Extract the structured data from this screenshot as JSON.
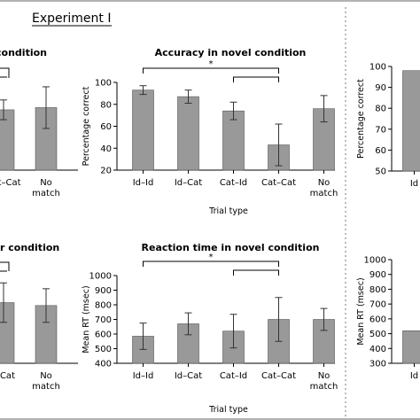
{
  "figure": {
    "heading": "Experiment I"
  },
  "chart_data": [
    {
      "type": "bar",
      "title": "condition",
      "categories": [
        "Cat–Cat",
        "No\nmatch"
      ],
      "values": [
        75,
        77
      ],
      "errors": [
        9,
        19
      ],
      "ylim": [
        20,
        100
      ],
      "yticks": [],
      "ylabel": "",
      "xlabel": "",
      "significance": []
    },
    {
      "type": "bar",
      "title": "Accuracy in novel condition",
      "categories": [
        "Id–Id",
        "Id–Cat",
        "Cat–Id",
        "Cat–Cat",
        "No\nmatch"
      ],
      "values": [
        93,
        87,
        74,
        43,
        76
      ],
      "errors": [
        4,
        6,
        8,
        19,
        12
      ],
      "ylim": [
        20,
        100
      ],
      "yticks": [
        20,
        40,
        60,
        80,
        100
      ],
      "ylabel": "Percentage correct",
      "xlabel": "Trial type",
      "significance": [
        {
          "from": 0,
          "to": 3,
          "label": "*"
        },
        {
          "from": 2,
          "to": 3,
          "label": ""
        }
      ]
    },
    {
      "type": "bar",
      "title": "",
      "categories": [
        "Id"
      ],
      "values": [
        98
      ],
      "errors": [
        0
      ],
      "ylim": [
        50,
        100
      ],
      "yticks": [
        50,
        60,
        70,
        80,
        90,
        100
      ],
      "ylabel": "Percentage correct",
      "xlabel": "",
      "significance": []
    },
    {
      "type": "bar",
      "title": "r condition",
      "categories": [
        "t–Cat",
        "No\nmatch"
      ],
      "values": [
        815,
        795
      ],
      "errors": [
        135,
        115
      ],
      "ylim": [
        400,
        1000
      ],
      "yticks": [],
      "ylabel": "",
      "xlabel": "",
      "significance": []
    },
    {
      "type": "bar",
      "title": "Reaction time in novel condition",
      "categories": [
        "Id–Id",
        "Id–Cat",
        "Cat–Id",
        "Cat–Cat",
        "No\nmatch"
      ],
      "values": [
        585,
        670,
        620,
        700,
        700
      ],
      "errors": [
        90,
        75,
        115,
        150,
        75
      ],
      "ylim": [
        400,
        1000
      ],
      "yticks": [
        400,
        500,
        600,
        700,
        800,
        900,
        1000
      ],
      "ylabel": "Mean RT (msec)",
      "xlabel": "Trial type",
      "significance": [
        {
          "from": 0,
          "to": 3,
          "label": "*"
        },
        {
          "from": 2,
          "to": 3,
          "label": ""
        }
      ]
    },
    {
      "type": "bar",
      "title": "",
      "categories": [
        "Id"
      ],
      "values": [
        520
      ],
      "errors": [
        0
      ],
      "ylim": [
        300,
        1000
      ],
      "yticks": [
        300,
        400,
        500,
        600,
        700,
        800,
        900,
        1000
      ],
      "ylabel": "Mean RT (msec)",
      "xlabel": "",
      "significance": []
    }
  ]
}
